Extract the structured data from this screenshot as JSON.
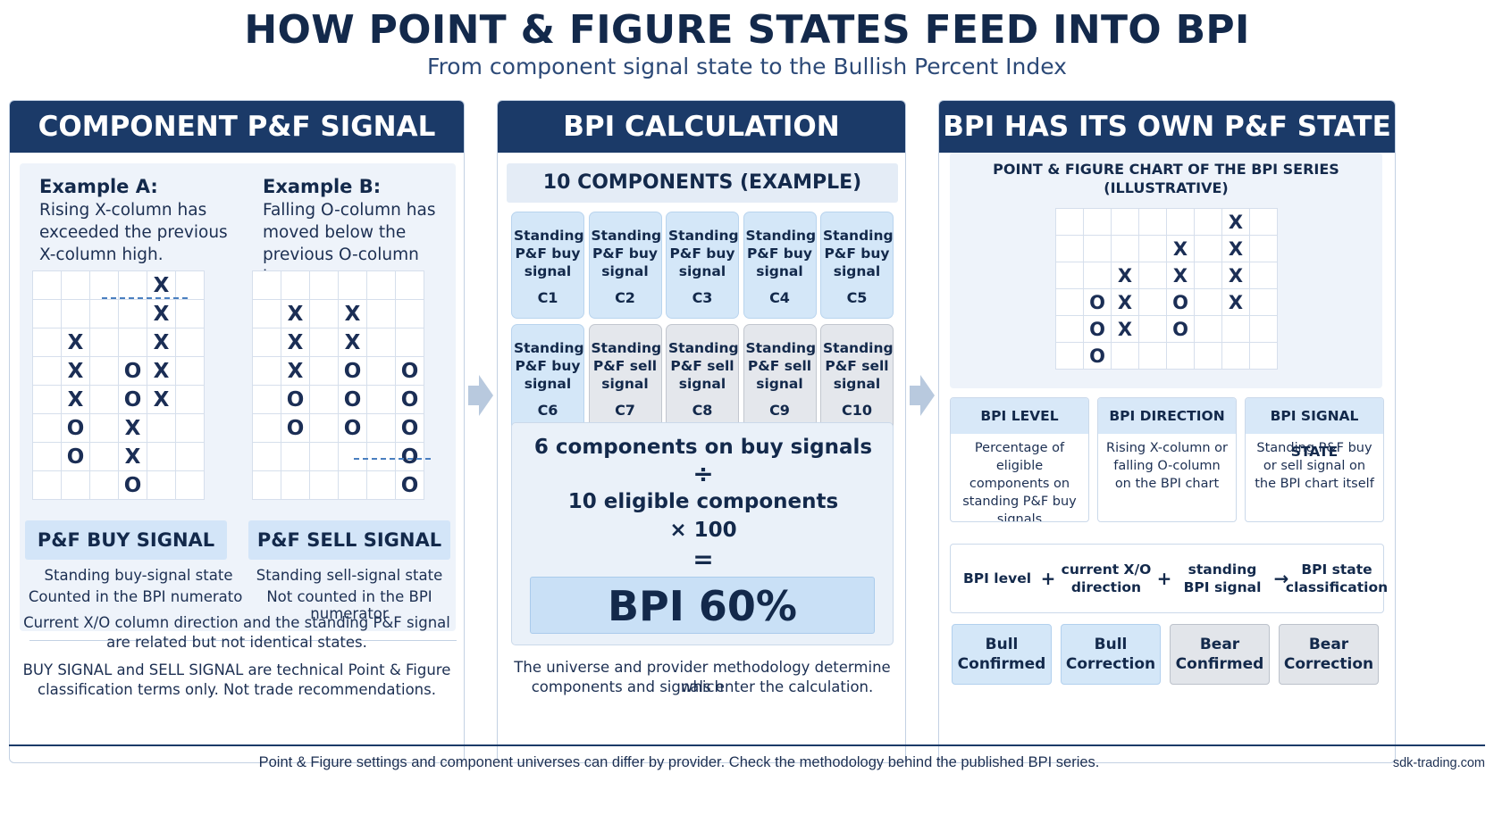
{
  "title": "HOW POINT & FIGURE STATES FEED INTO BPI",
  "subtitle": "From component signal state to the Bullish Percent Index",
  "panel1": {
    "header": "COMPONENT P&F SIGNAL",
    "example_a": {
      "title": "Example A:",
      "desc": "Rising X-column has exceeded the previous X-column high.",
      "grid": [
        [
          "",
          "",
          "",
          "",
          "X",
          ""
        ],
        [
          "",
          "",
          "",
          "",
          "X",
          ""
        ],
        [
          "",
          "X",
          "",
          "",
          "X",
          ""
        ],
        [
          "",
          "X",
          "",
          "O",
          "X",
          ""
        ],
        [
          "",
          "X",
          "",
          "O",
          "X",
          ""
        ],
        [
          "",
          "O",
          "",
          "X",
          "",
          ""
        ],
        [
          "",
          "O",
          "",
          "X",
          "",
          ""
        ],
        [
          "",
          "",
          "",
          "O",
          "",
          ""
        ]
      ],
      "signal": "P&F BUY SIGNAL",
      "line1": "Standing buy-signal state",
      "line2": "Counted in the BPI numerator"
    },
    "example_b": {
      "title": "Example B:",
      "desc": "Falling O-column has moved below the previous O-column low.",
      "grid": [
        [
          "",
          "",
          "",
          "",
          "",
          ""
        ],
        [
          "",
          "X",
          "",
          "X",
          "",
          ""
        ],
        [
          "",
          "X",
          "",
          "X",
          "",
          ""
        ],
        [
          "",
          "X",
          "",
          "O",
          "",
          "O"
        ],
        [
          "",
          "O",
          "",
          "O",
          "",
          "O"
        ],
        [
          "",
          "O",
          "",
          "O",
          "",
          "O"
        ],
        [
          "",
          "",
          "",
          "",
          "",
          "O"
        ],
        [
          "",
          "",
          "",
          "",
          "",
          "O"
        ]
      ],
      "signal": "P&F SELL SIGNAL",
      "line1": "Standing sell-signal state",
      "line2": "Not counted in the BPI numerator"
    },
    "note1a": "Current X/O column direction and the standing P&F signal",
    "note1b": "are related but not identical states.",
    "note2a": "BUY SIGNAL and SELL SIGNAL are technical Point & Figure",
    "note2b": "classification terms only. Not trade recommendations."
  },
  "panel2": {
    "header": "BPI CALCULATION",
    "banner": "10 COMPONENTS (EXAMPLE)",
    "components": [
      {
        "label": "Standing P&F buy signal",
        "id": "C1",
        "state": "buy"
      },
      {
        "label": "Standing P&F buy signal",
        "id": "C2",
        "state": "buy"
      },
      {
        "label": "Standing P&F buy signal",
        "id": "C3",
        "state": "buy"
      },
      {
        "label": "Standing P&F buy signal",
        "id": "C4",
        "state": "buy"
      },
      {
        "label": "Standing P&F buy signal",
        "id": "C5",
        "state": "buy"
      },
      {
        "label": "Standing P&F buy signal",
        "id": "C6",
        "state": "buy"
      },
      {
        "label": "Standing P&F sell signal",
        "id": "C7",
        "state": "sell"
      },
      {
        "label": "Standing P&F sell signal",
        "id": "C8",
        "state": "sell"
      },
      {
        "label": "Standing P&F sell signal",
        "id": "C9",
        "state": "sell"
      },
      {
        "label": "Standing P&F sell signal",
        "id": "C10",
        "state": "sell"
      }
    ],
    "calc_numerator": "6 components on buy signals",
    "calc_divide": "÷",
    "calc_denominator": "10 eligible components",
    "calc_multiply": "× 100",
    "calc_equals": "=",
    "result": "BPI 60%",
    "note1": "The universe and provider methodology determine which",
    "note2": "components and signals enter the calculation."
  },
  "panel3": {
    "header": "BPI HAS ITS OWN P&F STATE",
    "chart_title1": "POINT & FIGURE CHART OF THE BPI SERIES",
    "chart_title2": "(ILLUSTRATIVE)",
    "grid": [
      [
        "",
        "",
        "",
        "",
        "",
        "",
        "X",
        ""
      ],
      [
        "",
        "",
        "",
        "",
        "X",
        "",
        "X",
        ""
      ],
      [
        "",
        "",
        "X",
        "",
        "X",
        "",
        "X",
        ""
      ],
      [
        "",
        "O",
        "X",
        "",
        "O",
        "",
        "X",
        ""
      ],
      [
        "",
        "O",
        "X",
        "",
        "O",
        "",
        "",
        ""
      ],
      [
        "",
        "O",
        "",
        "",
        "",
        "",
        "",
        ""
      ]
    ],
    "cards": [
      {
        "head": "BPI LEVEL",
        "body": "Percentage of eligible components on standing P&F buy signals"
      },
      {
        "head": "BPI DIRECTION",
        "body": "Rising X-column or falling O-column on the BPI chart"
      },
      {
        "head": "BPI SIGNAL STATE",
        "body": "Standing P&F buy or sell signal on the BPI chart itself"
      }
    ],
    "flow": {
      "item1": "BPI level",
      "op1": "+",
      "item2": "current X/O direction",
      "op2": "+",
      "item3": "standing BPI signal",
      "op3": "→",
      "item4": "BPI state classification"
    },
    "states": [
      {
        "label": "Bull Confirmed",
        "kind": "bull"
      },
      {
        "label": "Bull Correction",
        "kind": "bull"
      },
      {
        "label": "Bear Confirmed",
        "kind": "bear"
      },
      {
        "label": "Bear Correction",
        "kind": "bear"
      }
    ]
  },
  "footer": {
    "text": "Point & Figure settings and component universes can differ by provider. Check the methodology behind the published BPI series.",
    "site": "sdk-trading.com"
  },
  "colors": {
    "header_bg": "#1b3a68",
    "buy_fill": "#d4e7f8",
    "sell_fill": "#e4e7ec",
    "title_text": "#13294b"
  }
}
